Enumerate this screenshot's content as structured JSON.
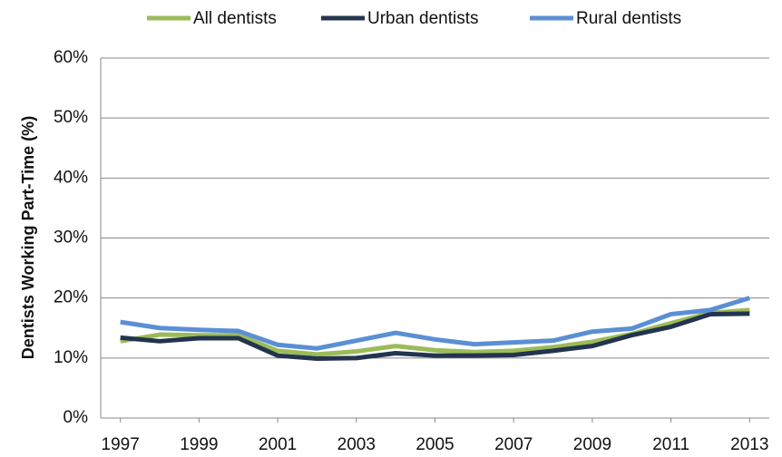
{
  "chart_data": {
    "type": "line",
    "y_label": "Dentists Working Part-Time (%)",
    "x": [
      1997,
      1998,
      1999,
      2000,
      2001,
      2002,
      2003,
      2004,
      2005,
      2006,
      2007,
      2008,
      2009,
      2010,
      2011,
      2012,
      2013
    ],
    "series": [
      {
        "name": "All dentists",
        "color": "#9bbb59",
        "values": [
          12.8,
          13.9,
          13.8,
          13.8,
          11.2,
          10.6,
          11.1,
          12.0,
          11.3,
          11.0,
          11.2,
          11.8,
          12.7,
          14.0,
          15.8,
          17.5,
          18.0
        ]
      },
      {
        "name": "Urban dentists",
        "color": "#23344f",
        "values": [
          13.4,
          12.8,
          13.3,
          13.3,
          10.4,
          9.9,
          10.0,
          10.8,
          10.4,
          10.4,
          10.5,
          11.2,
          12.0,
          13.8,
          15.2,
          17.3,
          17.4
        ]
      },
      {
        "name": "Rural dentists",
        "color": "#5b8fd4",
        "values": [
          16.0,
          15.0,
          14.7,
          14.5,
          12.2,
          11.6,
          12.9,
          14.2,
          13.1,
          12.3,
          12.6,
          12.9,
          14.4,
          14.9,
          17.3,
          18.0,
          20.0
        ]
      }
    ],
    "xlim": [
      1996.5,
      2013.5
    ],
    "xticks": [
      1997,
      1999,
      2001,
      2003,
      2005,
      2007,
      2009,
      2011,
      2013
    ],
    "ylim": [
      0,
      60
    ],
    "yticks": [
      {
        "value": 0,
        "label": "0%"
      },
      {
        "value": 10,
        "label": "10%"
      },
      {
        "value": 20,
        "label": "20%"
      },
      {
        "value": 30,
        "label": "30%"
      },
      {
        "value": 40,
        "label": "40%"
      },
      {
        "value": 50,
        "label": "50%"
      },
      {
        "value": 60,
        "label": "60%"
      }
    ],
    "grid": true,
    "legend": "top"
  }
}
